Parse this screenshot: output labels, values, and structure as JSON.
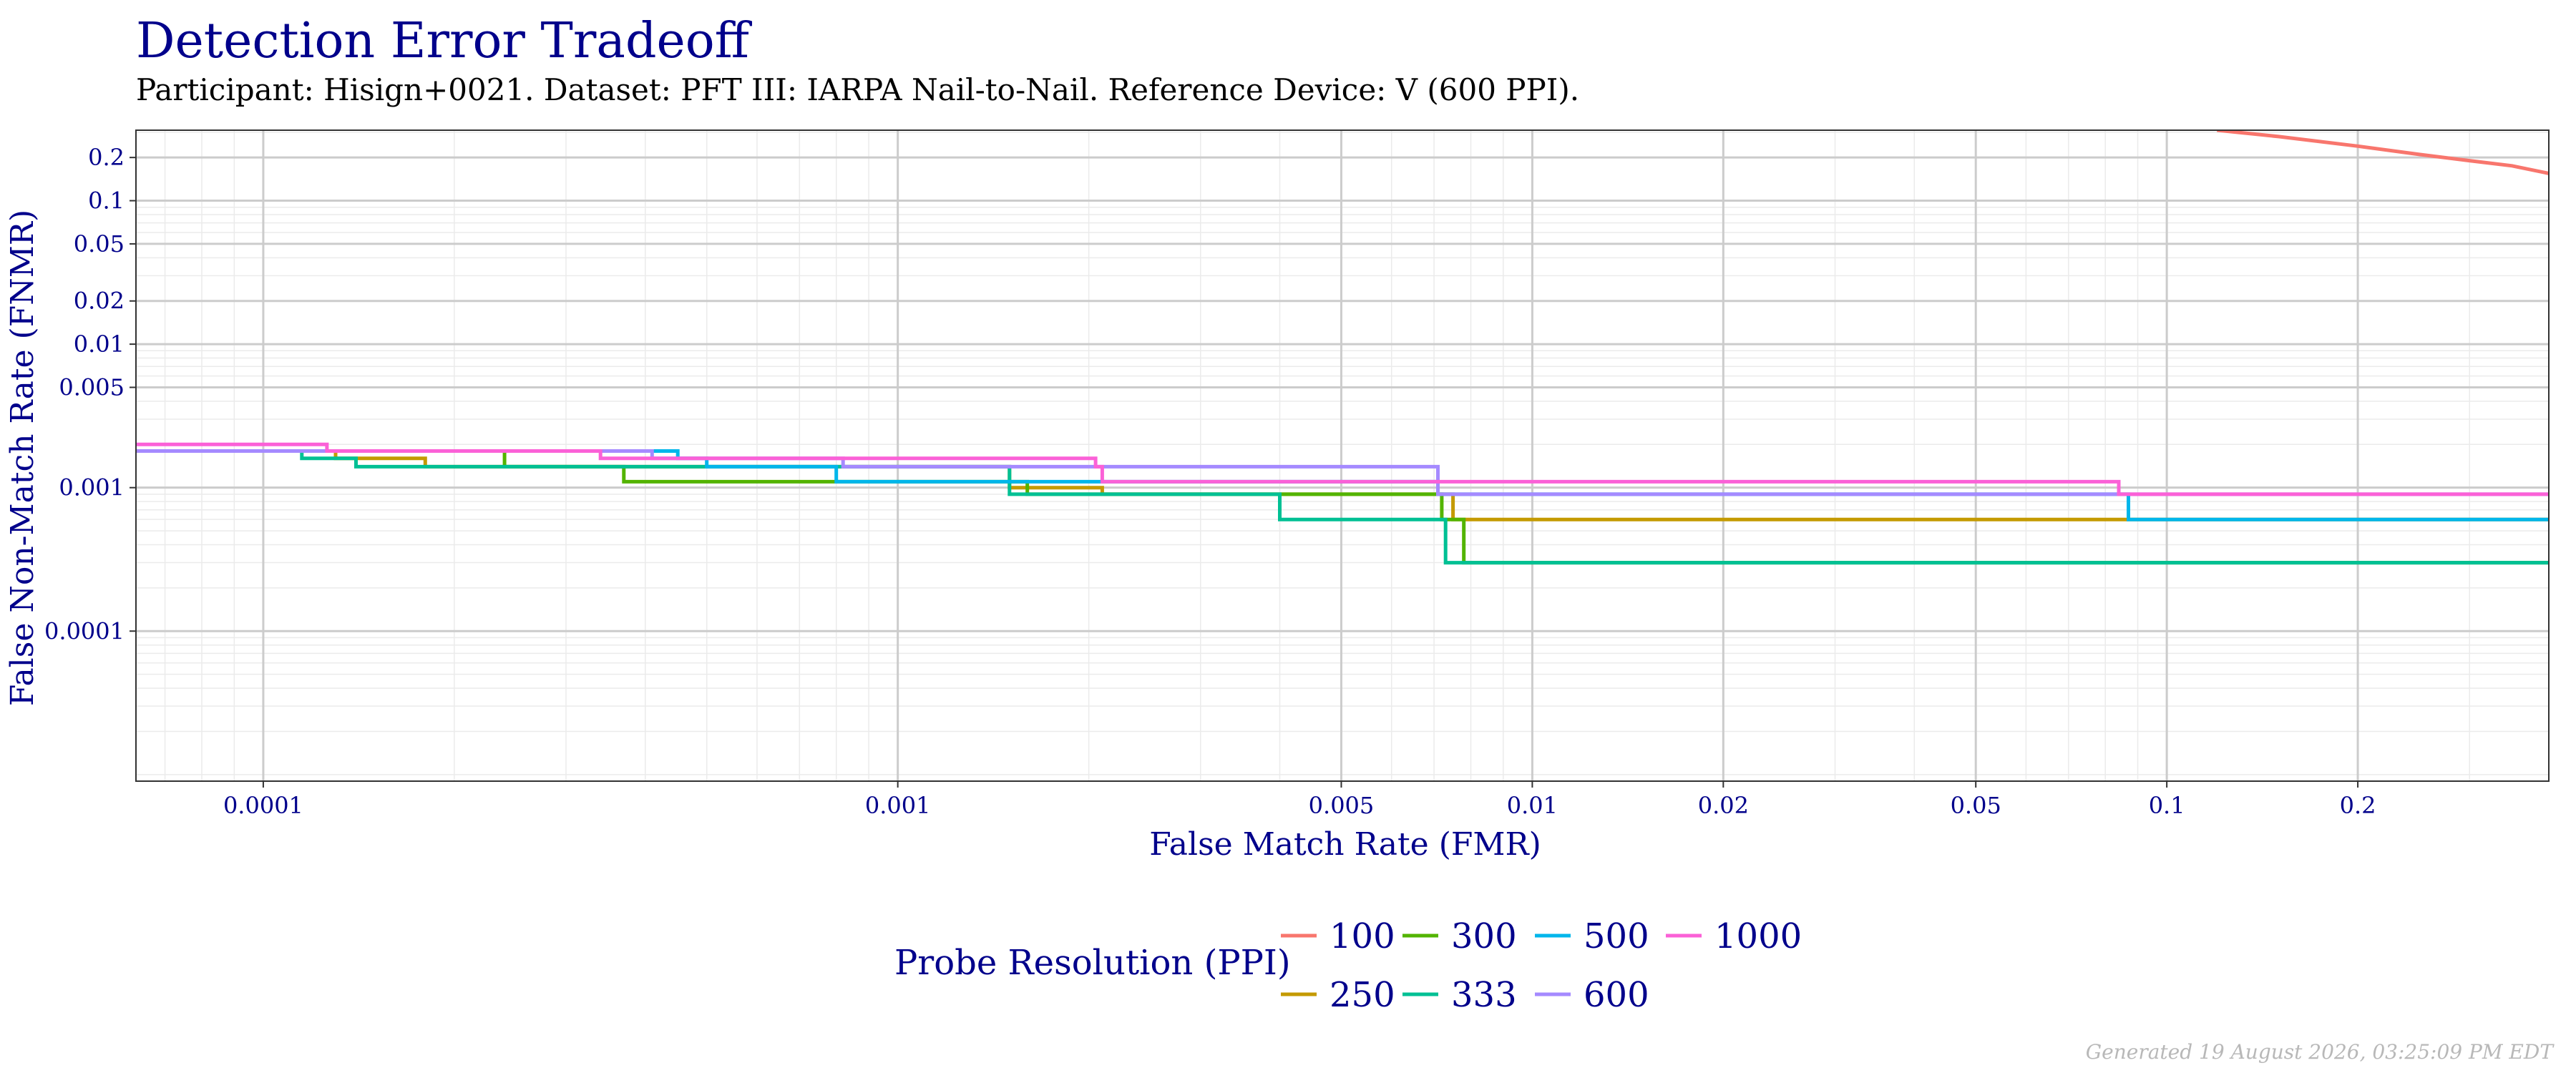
{
  "chart_data": {
    "type": "line",
    "title": "Detection Error Tradeoff",
    "subtitle": "Participant: Hisign+0021. Dataset: PFT III: IARPA Nail-to-Nail. Reference Device: V (600 PPI).",
    "xlabel": "False Match Rate (FMR)",
    "ylabel": "False Non-Match Rate (FNMR)",
    "x_scale": "log",
    "y_scale": "log",
    "xlim": [
      6.3e-05,
      0.4
    ],
    "ylim": [
      9e-06,
      0.31
    ],
    "x_ticks": [
      {
        "value": 0.0001,
        "label": "0.0001"
      },
      {
        "value": 0.001,
        "label": "0.001"
      },
      {
        "value": 0.005,
        "label": "0.005"
      },
      {
        "value": 0.01,
        "label": "0.01"
      },
      {
        "value": 0.02,
        "label": "0.02"
      },
      {
        "value": 0.05,
        "label": "0.05"
      },
      {
        "value": 0.1,
        "label": "0.1"
      },
      {
        "value": 0.2,
        "label": "0.2"
      }
    ],
    "y_ticks": [
      {
        "value": 0.0001,
        "label": "0.0001"
      },
      {
        "value": 0.001,
        "label": "0.001"
      },
      {
        "value": 0.005,
        "label": "0.005"
      },
      {
        "value": 0.01,
        "label": "0.01"
      },
      {
        "value": 0.02,
        "label": "0.02"
      },
      {
        "value": 0.05,
        "label": "0.05"
      },
      {
        "value": 0.1,
        "label": "0.1"
      },
      {
        "value": 0.2,
        "label": "0.2"
      }
    ],
    "grid": true,
    "legend_title": "Probe Resolution (PPI)",
    "legend_position": "bottom",
    "series": [
      {
        "name": "100",
        "color": "#F8766D",
        "x": [
          0.12,
          0.15,
          0.2,
          0.25,
          0.3,
          0.35,
          0.4
        ],
        "y": [
          0.31,
          0.28,
          0.24,
          0.21,
          0.19,
          0.175,
          0.155
        ]
      },
      {
        "name": "250",
        "color": "#C49A00",
        "x": [
          6.3e-05,
          0.00013,
          0.00013,
          0.00018,
          0.00018,
          0.0015,
          0.0015,
          0.0021,
          0.0021,
          0.0075,
          0.0075,
          0.085,
          0.085,
          0.4
        ],
        "y": [
          0.0018,
          0.0018,
          0.0016,
          0.0016,
          0.0014,
          0.0014,
          0.001,
          0.001,
          0.0009,
          0.0009,
          0.0006,
          0.0006,
          0.0006,
          0.0006
        ]
      },
      {
        "name": "300",
        "color": "#53B400",
        "x": [
          6.3e-05,
          0.00024,
          0.00024,
          0.00037,
          0.00037,
          0.0016,
          0.0016,
          0.0072,
          0.0072,
          0.0078,
          0.0078,
          0.4
        ],
        "y": [
          0.0018,
          0.0018,
          0.0014,
          0.0014,
          0.0011,
          0.0011,
          0.0009,
          0.0009,
          0.0006,
          0.0006,
          0.0003,
          0.0003
        ]
      },
      {
        "name": "333",
        "color": "#00C094",
        "x": [
          6.3e-05,
          0.000115,
          0.000115,
          0.00014,
          0.00014,
          0.0015,
          0.0015,
          0.004,
          0.004,
          0.0073,
          0.0073,
          0.4
        ],
        "y": [
          0.0018,
          0.0018,
          0.0016,
          0.0016,
          0.0014,
          0.0014,
          0.0009,
          0.0009,
          0.0006,
          0.0006,
          0.0003,
          0.0003
        ]
      },
      {
        "name": "500",
        "color": "#00B6EB",
        "x": [
          6.3e-05,
          0.00045,
          0.00045,
          0.0005,
          0.0005,
          0.0008,
          0.0008,
          0.0071,
          0.0071,
          0.087,
          0.087,
          0.4
        ],
        "y": [
          0.0018,
          0.0018,
          0.0016,
          0.0016,
          0.0014,
          0.0014,
          0.0011,
          0.0011,
          0.0009,
          0.0009,
          0.0006,
          0.0006
        ]
      },
      {
        "name": "600",
        "color": "#A58AFF",
        "x": [
          6.3e-05,
          0.00041,
          0.00041,
          0.00082,
          0.00082,
          0.0071,
          0.0071,
          0.4
        ],
        "y": [
          0.0018,
          0.0018,
          0.0016,
          0.0016,
          0.0014,
          0.0014,
          0.0009,
          0.0009
        ]
      },
      {
        "name": "1000",
        "color": "#FB61D7",
        "x": [
          6.3e-05,
          0.000126,
          0.000126,
          0.00034,
          0.00034,
          0.00205,
          0.00205,
          0.0021,
          0.0021,
          0.084,
          0.084,
          0.4
        ],
        "y": [
          0.002,
          0.002,
          0.0018,
          0.0018,
          0.0016,
          0.0016,
          0.0014,
          0.0014,
          0.0011,
          0.0011,
          0.0009,
          0.0009
        ]
      }
    ]
  },
  "footer": "Generated 19 August 2026, 03:25:09 PM EDT"
}
